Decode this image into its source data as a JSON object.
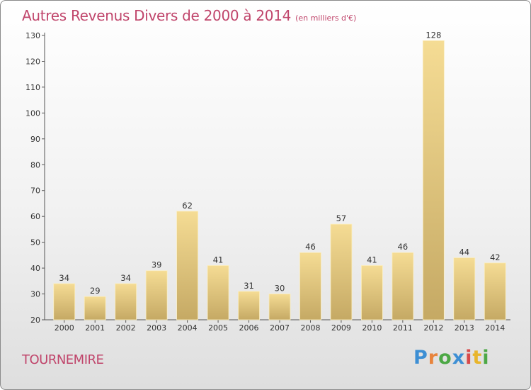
{
  "chart_data": {
    "type": "bar",
    "title": "Autres Revenus Divers de 2000 à 2014",
    "subtitle": "(en milliers d'€)",
    "xlabel": "",
    "ylabel": "",
    "categories": [
      "2000",
      "2001",
      "2002",
      "2003",
      "2004",
      "2005",
      "2006",
      "2007",
      "2008",
      "2009",
      "2010",
      "2011",
      "2012",
      "2013",
      "2014"
    ],
    "values": [
      34,
      29,
      34,
      39,
      62,
      41,
      31,
      30,
      46,
      57,
      41,
      46,
      128,
      44,
      42
    ],
    "ylim": [
      20,
      130
    ],
    "yticks": [
      20,
      30,
      40,
      50,
      60,
      70,
      80,
      90,
      100,
      110,
      120,
      130
    ],
    "grid": false,
    "data_labels": true,
    "colors": {
      "bar_light": "#f5dc94",
      "bar_dark": "#c5a964",
      "title": "#c0456b"
    }
  },
  "footer": {
    "commune": "TOURNEMIRE"
  },
  "logo": {
    "letters": [
      {
        "ch": "P",
        "color": "#3d8fd4"
      },
      {
        "ch": "r",
        "color": "#e8843c"
      },
      {
        "ch": "o",
        "color": "#4ca845"
      },
      {
        "ch": "x",
        "color": "#3d8fd4"
      },
      {
        "ch": "i",
        "color": "#d84a4a"
      },
      {
        "ch": "t",
        "color": "#e8b52c"
      },
      {
        "ch": "i",
        "color": "#4ca845"
      }
    ]
  }
}
